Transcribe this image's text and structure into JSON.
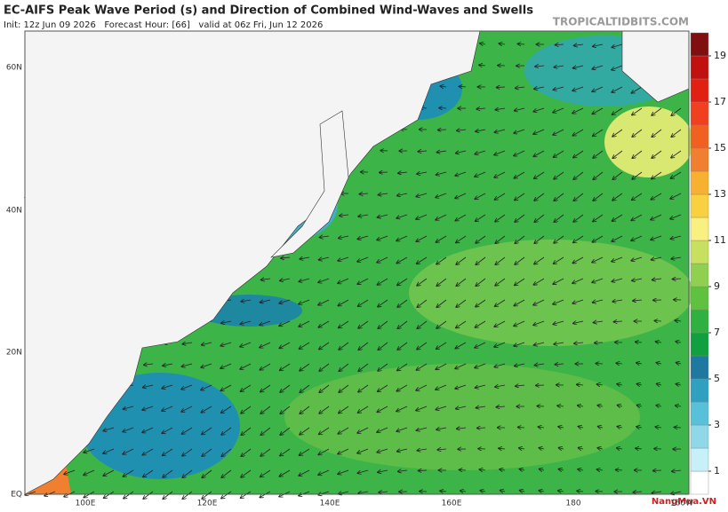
{
  "header": {
    "title": "EC-AIFS Peak Wave Period (s) and Direction of Combined Wind-Waves and Swells",
    "subtitle": "Init: 12z Jun 09 2026   Forecast Hour: [66]   valid at 06z Fri, Jun 12 2026",
    "site": "TROPICALTIDBITS.COM"
  },
  "map": {
    "lat_labels": [
      "60N",
      "40N",
      "20N",
      "EQ"
    ],
    "lon_labels": [
      "100E",
      "120E",
      "140E",
      "160E",
      "180",
      "160W"
    ]
  },
  "colorbar": {
    "range": [
      0,
      20
    ],
    "ticks": [
      1,
      3,
      5,
      7,
      9,
      11,
      13,
      15,
      17,
      19
    ],
    "colors": [
      "#ffffff",
      "#c8f0f8",
      "#90d8e8",
      "#58c0d8",
      "#30a0c0",
      "#1e78a0",
      "#10a040",
      "#30b040",
      "#60c040",
      "#90d050",
      "#c8e060",
      "#f8f080",
      "#f8d040",
      "#f8b030",
      "#f08030",
      "#f06020",
      "#f04020",
      "#e02010",
      "#c01010",
      "#801010"
    ]
  },
  "watermark": "NangMua.VN"
}
